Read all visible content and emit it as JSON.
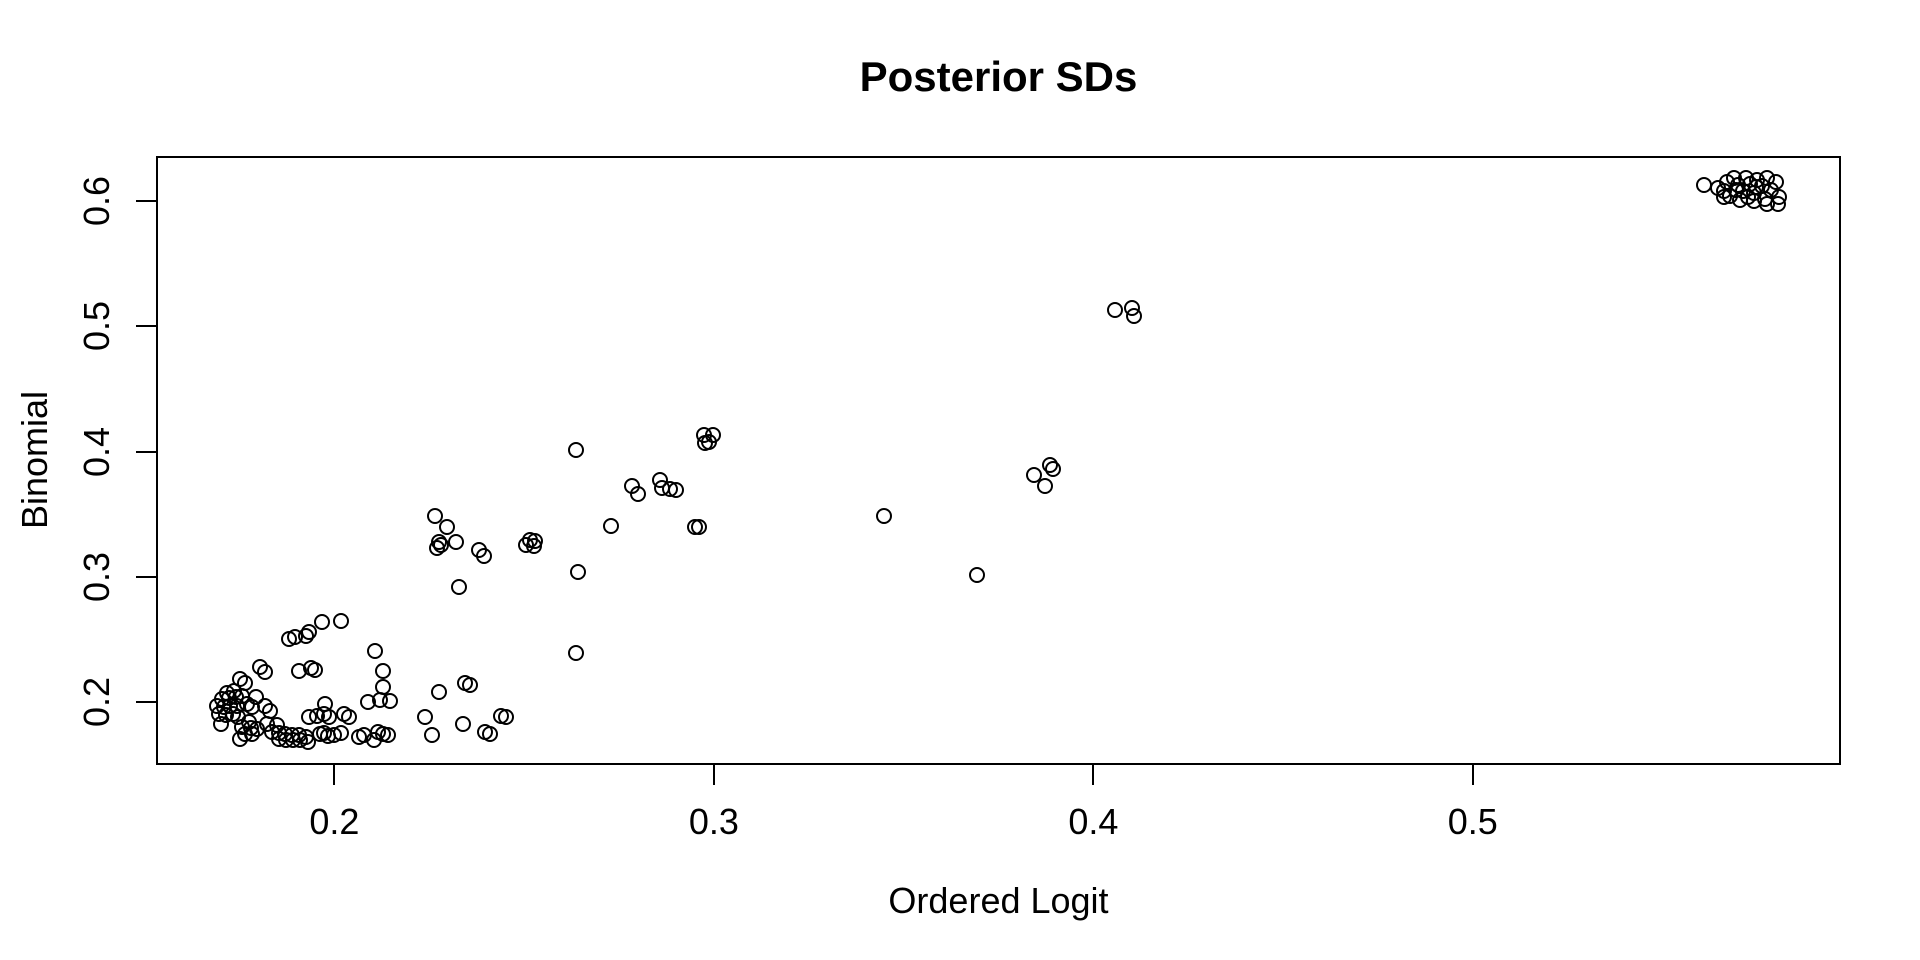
{
  "page": {
    "background_color": "#ffffff",
    "foreground_color": "#000000"
  },
  "chart_data": {
    "type": "scatter",
    "title": "Posterior SDs",
    "xlabel": "Ordered Logit",
    "ylabel": "Binomial",
    "xlim": [
      0.1535,
      0.5965
    ],
    "ylim": [
      0.1515,
      0.6345
    ],
    "x_ticks": [
      0.2,
      0.3,
      0.4,
      0.5
    ],
    "x_tick_labels": [
      "0.2",
      "0.3",
      "0.4",
      "0.5"
    ],
    "y_ticks": [
      0.2,
      0.3,
      0.4,
      0.5,
      0.6
    ],
    "y_tick_labels": [
      "0.2",
      "0.3",
      "0.4",
      "0.5",
      "0.6"
    ],
    "grid": false,
    "legend": false,
    "marker": "open-circle",
    "marker_color": "#000000",
    "points": [
      [
        0.5609,
        0.613
      ],
      [
        0.5647,
        0.6109
      ],
      [
        0.5661,
        0.6082
      ],
      [
        0.5669,
        0.6154
      ],
      [
        0.5688,
        0.6189
      ],
      [
        0.57,
        0.6133
      ],
      [
        0.5712,
        0.6085
      ],
      [
        0.5719,
        0.6183
      ],
      [
        0.5731,
        0.6141
      ],
      [
        0.5742,
        0.6066
      ],
      [
        0.5748,
        0.6173
      ],
      [
        0.574,
        0.6002
      ],
      [
        0.5763,
        0.612
      ],
      [
        0.577,
        0.6016
      ],
      [
        0.5776,
        0.6183
      ],
      [
        0.5786,
        0.6093
      ],
      [
        0.5775,
        0.5976
      ],
      [
        0.5798,
        0.6157
      ],
      [
        0.5806,
        0.6034
      ],
      [
        0.5803,
        0.5979
      ],
      [
        0.5703,
        0.6013
      ],
      [
        0.5678,
        0.6042
      ],
      [
        0.5663,
        0.6034
      ],
      [
        0.5725,
        0.6034
      ],
      [
        0.5694,
        0.6088
      ],
      [
        0.5747,
        0.6114
      ],
      [
        0.4057,
        0.5132
      ],
      [
        0.4101,
        0.5146
      ],
      [
        0.4107,
        0.5084
      ],
      [
        0.3843,
        0.3817
      ],
      [
        0.3887,
        0.3896
      ],
      [
        0.3893,
        0.3862
      ],
      [
        0.3872,
        0.3724
      ],
      [
        0.3449,
        0.3484
      ],
      [
        0.3694,
        0.3012
      ],
      [
        0.2637,
        0.401
      ],
      [
        0.2973,
        0.4136
      ],
      [
        0.2997,
        0.413
      ],
      [
        0.2988,
        0.4075
      ],
      [
        0.2977,
        0.407
      ],
      [
        0.2784,
        0.3729
      ],
      [
        0.28,
        0.3665
      ],
      [
        0.2857,
        0.3777
      ],
      [
        0.2863,
        0.3711
      ],
      [
        0.2885,
        0.3703
      ],
      [
        0.29,
        0.3697
      ],
      [
        0.2729,
        0.341
      ],
      [
        0.295,
        0.34
      ],
      [
        0.2962,
        0.3396
      ],
      [
        0.2641,
        0.3038
      ],
      [
        0.2264,
        0.3484
      ],
      [
        0.2297,
        0.34
      ],
      [
        0.2275,
        0.3277
      ],
      [
        0.2281,
        0.3253
      ],
      [
        0.2269,
        0.3232
      ],
      [
        0.2321,
        0.3277
      ],
      [
        0.238,
        0.3219
      ],
      [
        0.2393,
        0.3171
      ],
      [
        0.2516,
        0.3299
      ],
      [
        0.2529,
        0.3285
      ],
      [
        0.2506,
        0.3259
      ],
      [
        0.2525,
        0.3246
      ],
      [
        0.2327,
        0.2918
      ],
      [
        0.2637,
        0.2397
      ],
      [
        0.2275,
        0.2082
      ],
      [
        0.2343,
        0.2151
      ],
      [
        0.2358,
        0.2135
      ],
      [
        0.2238,
        0.1886
      ],
      [
        0.2257,
        0.1737
      ],
      [
        0.2339,
        0.1825
      ],
      [
        0.2439,
        0.1891
      ],
      [
        0.2453,
        0.1886
      ],
      [
        0.2398,
        0.1759
      ],
      [
        0.2411,
        0.1748
      ],
      [
        0.188,
        0.2505
      ],
      [
        0.1897,
        0.2518
      ],
      [
        0.1924,
        0.2532
      ],
      [
        0.1805,
        0.2279
      ],
      [
        0.1818,
        0.2239
      ],
      [
        0.1752,
        0.2186
      ],
      [
        0.1764,
        0.2151
      ],
      [
        0.1906,
        0.2252
      ],
      [
        0.1717,
        0.2072
      ],
      [
        0.1734,
        0.2088
      ],
      [
        0.1704,
        0.2027
      ],
      [
        0.1721,
        0.2035
      ],
      [
        0.174,
        0.204
      ],
      [
        0.1756,
        0.2046
      ],
      [
        0.1691,
        0.1974
      ],
      [
        0.1708,
        0.1966
      ],
      [
        0.1726,
        0.1974
      ],
      [
        0.1743,
        0.1968
      ],
      [
        0.1697,
        0.1907
      ],
      [
        0.1715,
        0.1902
      ],
      [
        0.1732,
        0.1907
      ],
      [
        0.177,
        0.1986
      ],
      [
        0.1792,
        0.204
      ],
      [
        0.1783,
        0.196
      ],
      [
        0.1702,
        0.1828
      ],
      [
        0.1747,
        0.188
      ],
      [
        0.1756,
        0.1801
      ],
      [
        0.1774,
        0.1841
      ],
      [
        0.1781,
        0.1796
      ],
      [
        0.1765,
        0.1748
      ],
      [
        0.1784,
        0.1748
      ],
      [
        0.1796,
        0.1788
      ],
      [
        0.1752,
        0.1708
      ],
      [
        0.1818,
        0.1974
      ],
      [
        0.1831,
        0.1934
      ],
      [
        0.1836,
        0.1762
      ],
      [
        0.1853,
        0.1754
      ],
      [
        0.1855,
        0.1708
      ],
      [
        0.1871,
        0.1748
      ],
      [
        0.1873,
        0.17
      ],
      [
        0.1889,
        0.1735
      ],
      [
        0.189,
        0.1695
      ],
      [
        0.1906,
        0.1735
      ],
      [
        0.1908,
        0.1695
      ],
      [
        0.1924,
        0.1722
      ],
      [
        0.1929,
        0.1682
      ],
      [
        0.1849,
        0.1815
      ],
      [
        0.1823,
        0.1823
      ],
      [
        0.1932,
        0.2558
      ],
      [
        0.1968,
        0.2637
      ],
      [
        0.2016,
        0.2645
      ],
      [
        0.1939,
        0.2271
      ],
      [
        0.195,
        0.2258
      ],
      [
        0.2106,
        0.2412
      ],
      [
        0.2127,
        0.2252
      ],
      [
        0.2127,
        0.2119
      ],
      [
        0.2089,
        0.1999
      ],
      [
        0.2119,
        0.2018
      ],
      [
        0.2147,
        0.2013
      ],
      [
        0.1976,
        0.1986
      ],
      [
        0.1954,
        0.1894
      ],
      [
        0.1932,
        0.188
      ],
      [
        0.1972,
        0.1907
      ],
      [
        0.1985,
        0.188
      ],
      [
        0.2024,
        0.1907
      ],
      [
        0.2038,
        0.188
      ],
      [
        0.1963,
        0.1748
      ],
      [
        0.1972,
        0.1753
      ],
      [
        0.1983,
        0.1727
      ],
      [
        0.1998,
        0.1735
      ],
      [
        0.2016,
        0.1753
      ],
      [
        0.2064,
        0.1722
      ],
      [
        0.2077,
        0.1735
      ],
      [
        0.2104,
        0.1695
      ],
      [
        0.2115,
        0.1762
      ],
      [
        0.2127,
        0.1743
      ],
      [
        0.2141,
        0.1735
      ]
    ]
  }
}
